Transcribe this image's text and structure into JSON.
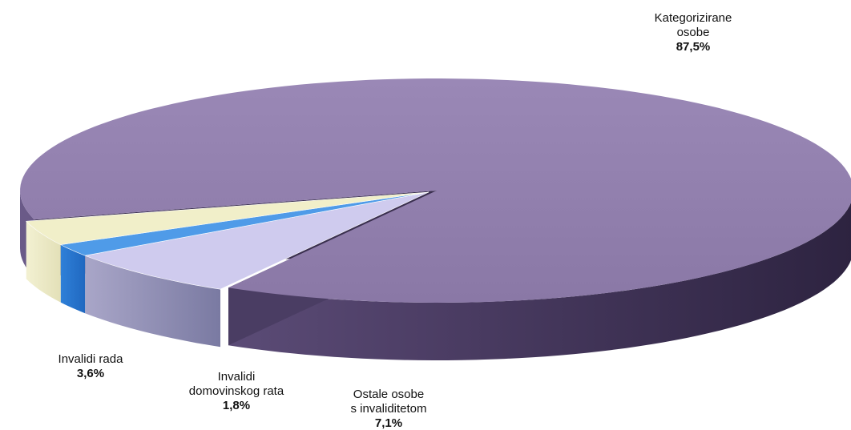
{
  "chart_data": {
    "type": "pie",
    "title": "",
    "style": "3d-exploded",
    "slices": [
      {
        "label_lines": [
          "Kategorizirane",
          "osobe"
        ],
        "value": 87.5,
        "value_label": "87,5%",
        "color": "#8c7aa8"
      },
      {
        "label_lines": [
          "Ostale osobe",
          "s invaliditetom"
        ],
        "value": 7.1,
        "value_label": "7,1%",
        "color": "#cfcbee"
      },
      {
        "label_lines": [
          "Invalidi",
          "domovinskog rata"
        ],
        "value": 1.8,
        "value_label": "1,8%",
        "color": "#4f9be8"
      },
      {
        "label_lines": [
          "Invalidi rada"
        ],
        "value": 3.6,
        "value_label": "3,6%",
        "color": "#f1efc9"
      }
    ]
  }
}
